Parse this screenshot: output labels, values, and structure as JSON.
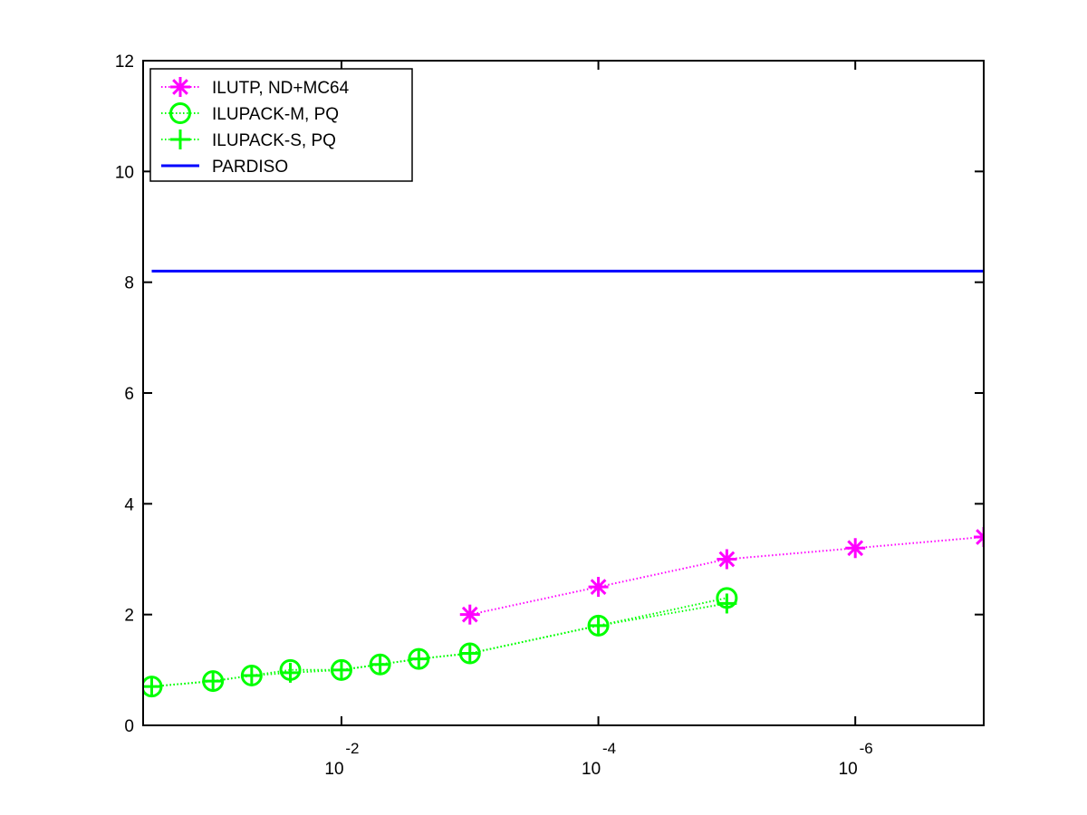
{
  "chart_data": {
    "type": "line",
    "x_scale": "log",
    "x_reversed": true,
    "xlim": [
      0.35,
      1e-07
    ],
    "ylim": [
      0,
      12
    ],
    "y_ticks": [
      0,
      2,
      4,
      6,
      8,
      10,
      12
    ],
    "x_ticks": [
      {
        "value": 0.01,
        "base": "10",
        "exponent": "-2"
      },
      {
        "value": 0.0001,
        "base": "10",
        "exponent": "-4"
      },
      {
        "value": 1e-06,
        "base": "10",
        "exponent": "-6"
      }
    ],
    "grid": false,
    "legend_position": "top-left",
    "series": [
      {
        "name": "ILUTP,  ND+MC64",
        "color": "#ff00ff",
        "marker": "asterisk",
        "line_style": "dotted",
        "x": [
          0.001,
          0.0001,
          1e-05,
          1e-06,
          1e-07
        ],
        "y": [
          2.0,
          2.5,
          3.0,
          3.2,
          3.4
        ]
      },
      {
        "name": "ILUPACK-M, PQ",
        "color": "#00ff00",
        "marker": "circle",
        "line_style": "dotted",
        "x": [
          0.3,
          0.1,
          0.05,
          0.025,
          0.01,
          0.005,
          0.0025,
          0.001,
          0.0001,
          1e-05
        ],
        "y": [
          0.7,
          0.8,
          0.9,
          1.0,
          1.0,
          1.1,
          1.2,
          1.3,
          1.8,
          2.3
        ]
      },
      {
        "name": "ILUPACK-S, PQ",
        "color": "#00ff00",
        "marker": "plus",
        "line_style": "dotted",
        "x": [
          0.3,
          0.1,
          0.05,
          0.025,
          0.01,
          0.005,
          0.0025,
          0.001,
          0.0001,
          1e-05
        ],
        "y": [
          0.7,
          0.8,
          0.9,
          0.95,
          1.0,
          1.1,
          1.2,
          1.3,
          1.8,
          2.2
        ]
      },
      {
        "name": "PARDISO",
        "color": "#0000ff",
        "marker": "none",
        "line_style": "solid",
        "x": [
          0.3,
          1e-07
        ],
        "y": [
          8.2,
          8.2
        ]
      }
    ]
  }
}
